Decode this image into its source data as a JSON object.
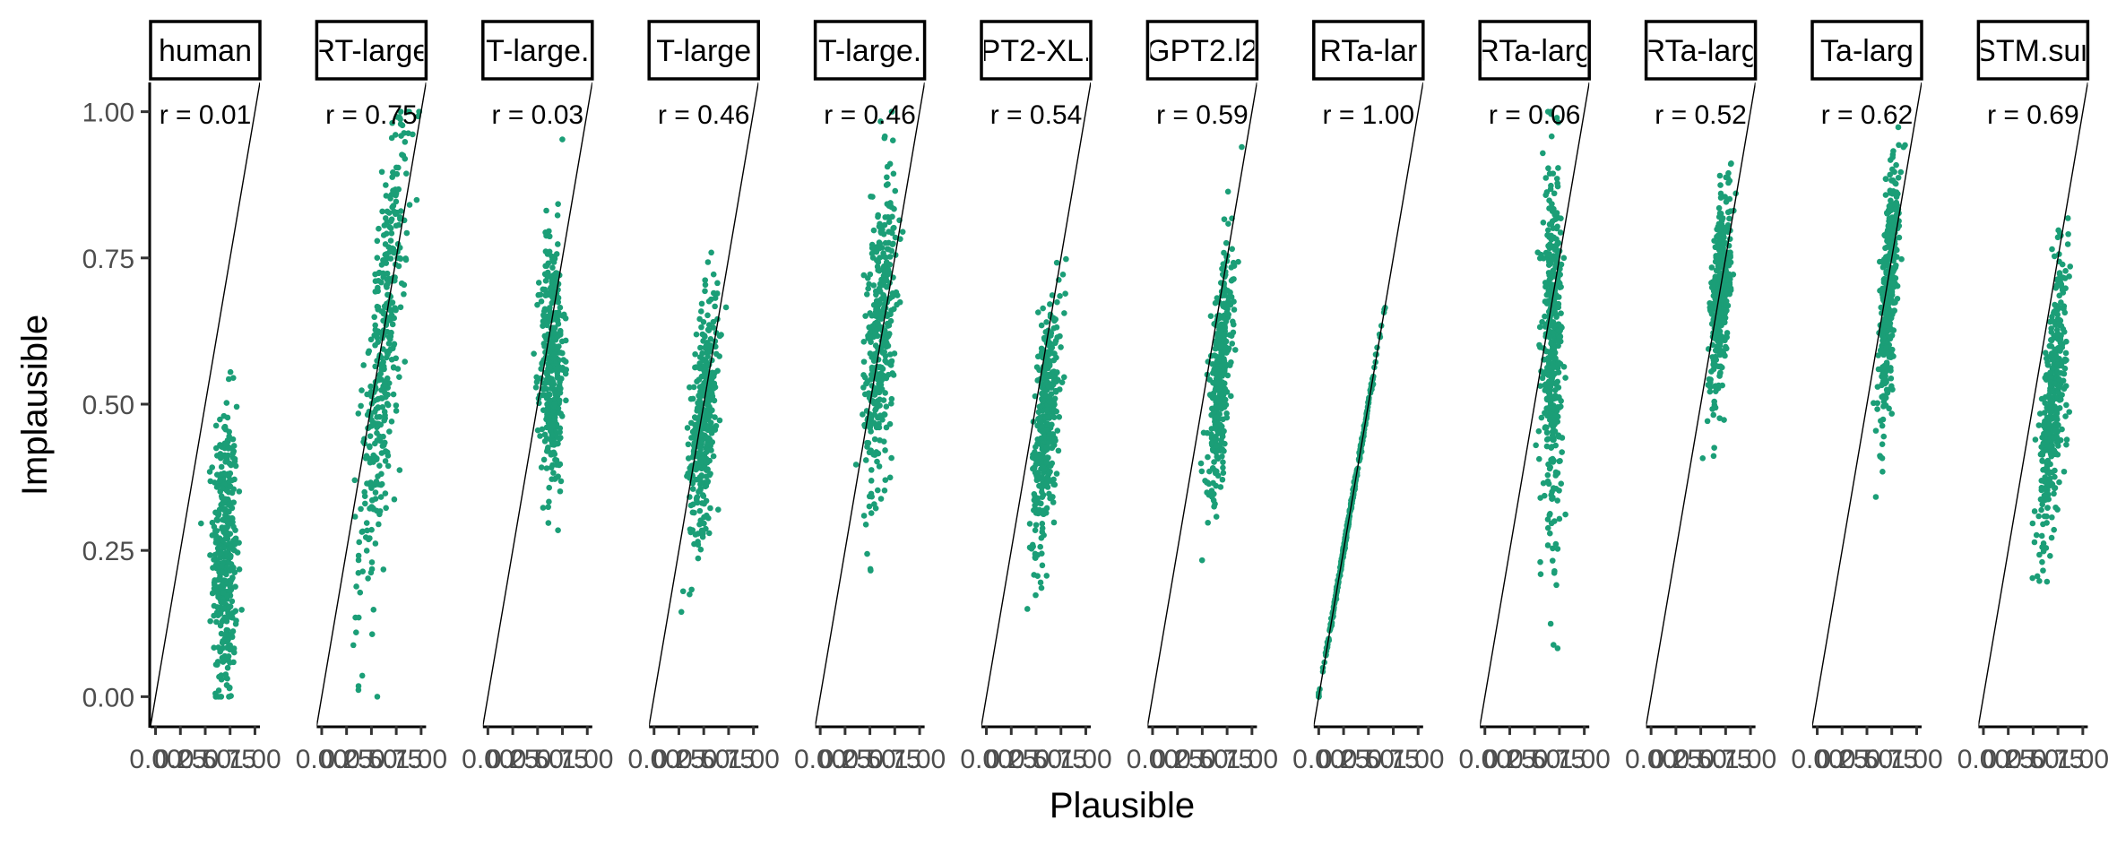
{
  "chart_data": {
    "type": "scatter",
    "xlabel": "Plausible",
    "ylabel": "Implausible",
    "xlim": [
      0,
      1
    ],
    "ylim": [
      0,
      1
    ],
    "x_ticks": [
      "0.00",
      "0.25",
      "0.50",
      "0.75",
      "1.00"
    ],
    "y_ticks": [
      "0.00",
      "0.25",
      "0.50",
      "0.75",
      "1.00"
    ],
    "reference_line": "identity (y = x)",
    "point_color": "#1b9e77",
    "grid": false,
    "panels": [
      {
        "strip": "human",
        "r": "r = 0.01",
        "x_center": 0.7,
        "x_spread": 0.06,
        "y_center": 0.24,
        "y_spread": 0.13,
        "corr": 0.01
      },
      {
        "strip": "RT-large",
        "r": "r = 0.75",
        "x_center": 0.62,
        "x_spread": 0.12,
        "y_center": 0.58,
        "y_spread": 0.2,
        "corr": 0.75
      },
      {
        "strip": "T-large.",
        "r": "r = 0.03",
        "x_center": 0.65,
        "x_spread": 0.06,
        "y_center": 0.57,
        "y_spread": 0.11,
        "corr": 0.03
      },
      {
        "strip": "T-large",
        "r": "r = 0.46",
        "x_center": 0.5,
        "x_spread": 0.07,
        "y_center": 0.48,
        "y_spread": 0.1,
        "corr": 0.46
      },
      {
        "strip": "T-large.",
        "r": "r = 0.46",
        "x_center": 0.6,
        "x_spread": 0.08,
        "y_center": 0.62,
        "y_spread": 0.14,
        "corr": 0.46
      },
      {
        "strip": "PT2-XL.",
        "r": "r = 0.54",
        "x_center": 0.6,
        "x_spread": 0.07,
        "y_center": 0.47,
        "y_spread": 0.11,
        "corr": 0.54
      },
      {
        "strip": "GPT2.l2",
        "r": "r = 0.59",
        "x_center": 0.68,
        "x_spread": 0.06,
        "y_center": 0.55,
        "y_spread": 0.1,
        "corr": 0.59
      },
      {
        "strip": "RTa-lar",
        "r": "r = 1.00",
        "x_center": 0.3,
        "x_spread": 0.15,
        "y_center": 0.3,
        "y_spread": 0.15,
        "corr": 1.0
      },
      {
        "strip": "RTa-larg",
        "r": "r = 0.06",
        "x_center": 0.68,
        "x_spread": 0.05,
        "y_center": 0.6,
        "y_spread": 0.15,
        "corr": 0.06
      },
      {
        "strip": "RTa-larg",
        "r": "r = 0.52",
        "x_center": 0.7,
        "x_spread": 0.05,
        "y_center": 0.69,
        "y_spread": 0.09,
        "corr": 0.52
      },
      {
        "strip": "Ta-larg",
        "r": "r = 0.62",
        "x_center": 0.72,
        "x_spread": 0.05,
        "y_center": 0.69,
        "y_spread": 0.11,
        "corr": 0.62
      },
      {
        "strip": "STM.sur",
        "r": "r = 0.69",
        "x_center": 0.7,
        "x_spread": 0.07,
        "y_center": 0.51,
        "y_spread": 0.12,
        "corr": 0.69
      }
    ]
  }
}
